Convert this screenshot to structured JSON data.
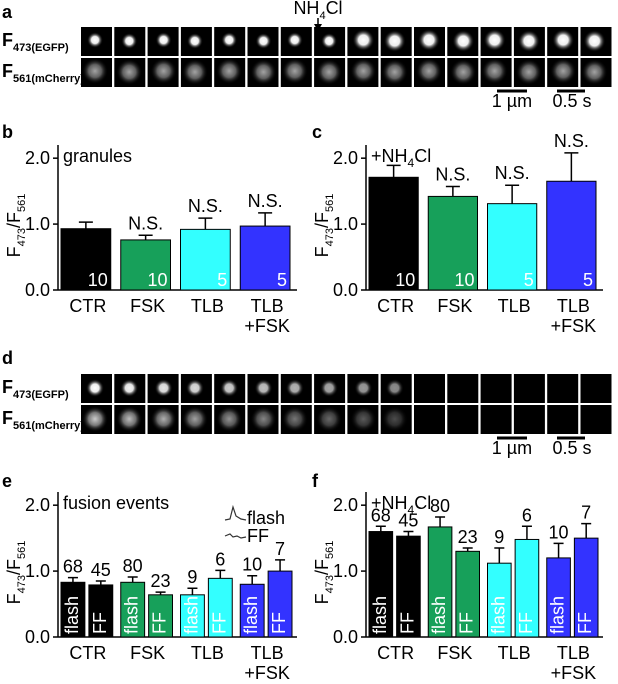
{
  "panel_labels": [
    "a",
    "b",
    "c",
    "d",
    "e",
    "f"
  ],
  "strip_a": {
    "event": [
      "NH",
      "4",
      "Cl"
    ],
    "rows": [
      [
        "F",
        "473(EGFP)"
      ],
      [
        "F",
        "561(mCherry)"
      ]
    ],
    "scale_bars": [
      "1 µm",
      "0.5 s"
    ]
  },
  "strip_d": {
    "rows": [
      [
        "F",
        "473(EGFP)"
      ],
      [
        "F",
        "561(mCherry)"
      ]
    ],
    "scale_bars": [
      "1 µm",
      "0.5 s"
    ]
  },
  "chart_data": [
    {
      "type": "bar",
      "title": "granules",
      "ylabel": [
        "F",
        "473",
        "/F",
        "561"
      ],
      "categories": [
        [
          "CTR"
        ],
        [
          "FSK"
        ],
        [
          "TLB"
        ],
        [
          "TLB",
          "+FSK"
        ]
      ],
      "colors": [
        "#000000",
        "#17a05a",
        "#33ffff",
        "#3333ff"
      ],
      "values": [
        0.93,
        0.76,
        0.92,
        0.97
      ],
      "errors": [
        0.1,
        0.07,
        0.17,
        0.2
      ],
      "n": [
        10,
        10,
        5,
        5
      ],
      "annotations": [
        null,
        "N.S.",
        "N.S.",
        "N.S."
      ],
      "ylim": [
        0,
        2.2
      ],
      "yticks": [
        {
          "value": 0,
          "label": "0.0"
        },
        {
          "value": 1,
          "label": "1.0"
        },
        {
          "value": 2,
          "label": "2.0"
        }
      ]
    },
    {
      "type": "bar",
      "title": [
        "+NH",
        "4",
        "Cl"
      ],
      "ylabel": [
        "F",
        "473",
        "/F",
        "561"
      ],
      "categories": [
        [
          "CTR"
        ],
        [
          "FSK"
        ],
        [
          "TLB"
        ],
        [
          "TLB",
          "+FSK"
        ]
      ],
      "colors": [
        "#000000",
        "#17a05a",
        "#33ffff",
        "#3333ff"
      ],
      "values": [
        1.71,
        1.42,
        1.31,
        1.65
      ],
      "errors": [
        0.18,
        0.15,
        0.28,
        0.43
      ],
      "n": [
        10,
        10,
        5,
        5
      ],
      "annotations": [
        null,
        "N.S.",
        "N.S.",
        "N.S."
      ],
      "ylim": [
        0,
        2.2
      ],
      "yticks": [
        {
          "value": 0,
          "label": "0.0"
        },
        {
          "value": 1,
          "label": "1.0"
        },
        {
          "value": 2,
          "label": "2.0"
        }
      ]
    },
    {
      "type": "grouped_bar",
      "title": "fusion events",
      "ylabel": [
        "F",
        "473",
        "/F",
        "561"
      ],
      "legend": true,
      "categories": [
        [
          "CTR"
        ],
        [
          "FSK"
        ],
        [
          "TLB"
        ],
        [
          "TLB",
          "+FSK"
        ]
      ],
      "colors": [
        "#000000",
        "#17a05a",
        "#33ffff",
        "#3333ff"
      ],
      "series": [
        {
          "name": "flash",
          "values": [
            0.83,
            0.83,
            0.64,
            0.8
          ],
          "errors": [
            0.07,
            0.08,
            0.1,
            0.13
          ],
          "n": [
            68,
            80,
            9,
            10
          ]
        },
        {
          "name": "FF",
          "values": [
            0.79,
            0.64,
            0.89,
            1.0
          ],
          "errors": [
            0.06,
            0.04,
            0.12,
            0.17
          ],
          "n": [
            45,
            23,
            6,
            7
          ]
        }
      ],
      "ylim": [
        0,
        2.2
      ],
      "yticks": [
        {
          "value": 0,
          "label": "0.0"
        },
        {
          "value": 1,
          "label": "1.0"
        },
        {
          "value": 2,
          "label": "2.0"
        }
      ]
    },
    {
      "type": "grouped_bar",
      "title": [
        "+NH",
        "4",
        "Cl"
      ],
      "ylabel": [
        "F",
        "473",
        "/F",
        "561"
      ],
      "categories": [
        [
          "CTR"
        ],
        [
          "FSK"
        ],
        [
          "TLB"
        ],
        [
          "TLB",
          "+FSK"
        ]
      ],
      "colors": [
        "#000000",
        "#17a05a",
        "#33ffff",
        "#3333ff"
      ],
      "series": [
        {
          "name": "flash",
          "values": [
            1.6,
            1.67,
            1.12,
            1.2
          ],
          "errors": [
            0.08,
            0.15,
            0.23,
            0.22
          ],
          "n": [
            68,
            80,
            9,
            10
          ]
        },
        {
          "name": "FF",
          "values": [
            1.53,
            1.3,
            1.48,
            1.5
          ],
          "errors": [
            0.07,
            0.05,
            0.2,
            0.22
          ],
          "n": [
            45,
            23,
            6,
            7
          ]
        }
      ],
      "ylim": [
        0,
        2.2
      ],
      "yticks": [
        {
          "value": 0,
          "label": "0.0"
        },
        {
          "value": 1,
          "label": "1.0"
        },
        {
          "value": 2,
          "label": "2.0"
        }
      ]
    }
  ]
}
